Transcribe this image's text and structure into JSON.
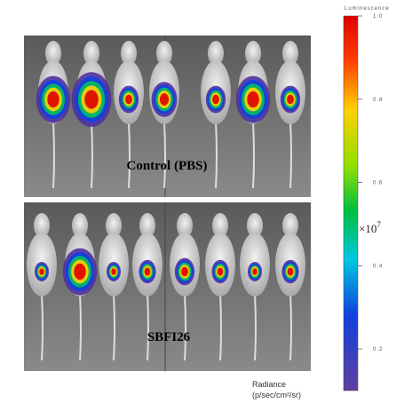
{
  "panels": [
    {
      "label": "Control (PBS)"
    },
    {
      "label": "SBFI26"
    }
  ],
  "colorbar": {
    "title": "Luminescence",
    "range": [
      0.1,
      1.0
    ],
    "ticks": [
      {
        "value": 1.0,
        "label": "1.0"
      },
      0.8,
      0.6,
      0.4,
      0.2
    ],
    "multiplier": "×10",
    "exponent": "7",
    "unit_title": "Radiance",
    "unit": "(p/sec/cm²/sr)"
  }
}
